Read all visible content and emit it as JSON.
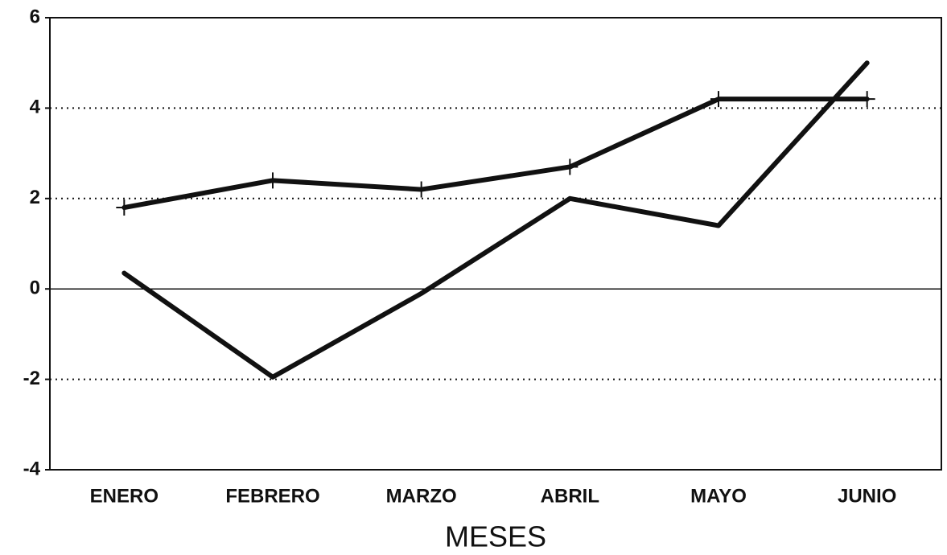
{
  "chart_data": {
    "type": "line",
    "categories": [
      "ENERO",
      "FEBRERO",
      "MARZO",
      "ABRIL",
      "MAYO",
      "JUNIO"
    ],
    "series": [
      {
        "color": "#111111",
        "marker": "+",
        "values": [
          1.8,
          2.4,
          2.2,
          2.7,
          4.2,
          4.2
        ]
      },
      {
        "color": "#111111",
        "marker": "none",
        "values": [
          0.35,
          -1.95,
          -0.1,
          2.0,
          1.4,
          5.0
        ]
      }
    ],
    "x_label": "MESES",
    "ylim": [
      -4,
      6
    ],
    "yticks": [
      -4,
      -2,
      0,
      2,
      4,
      6
    ],
    "grid": true
  }
}
